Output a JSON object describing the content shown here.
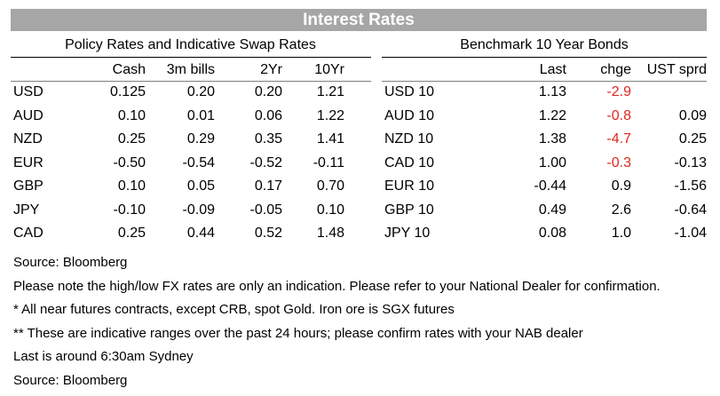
{
  "title": "Interest Rates",
  "policy": {
    "heading": "Policy Rates and Indicative Swap Rates",
    "columns": [
      "Cash",
      "3m bills",
      "2Yr",
      "10Yr"
    ],
    "rows": [
      {
        "label": "USD",
        "values": [
          "0.125",
          "0.20",
          "0.20",
          "1.21"
        ]
      },
      {
        "label": "AUD",
        "values": [
          "0.10",
          "0.01",
          "0.06",
          "1.22"
        ]
      },
      {
        "label": "NZD",
        "values": [
          "0.25",
          "0.29",
          "0.35",
          "1.41"
        ]
      },
      {
        "label": "EUR",
        "values": [
          "-0.50",
          "-0.54",
          "-0.52",
          "-0.11"
        ]
      },
      {
        "label": "GBP",
        "values": [
          "0.10",
          "0.05",
          "0.17",
          "0.70"
        ]
      },
      {
        "label": "JPY",
        "values": [
          "-0.10",
          "-0.09",
          "-0.05",
          "0.10"
        ]
      },
      {
        "label": "CAD",
        "values": [
          "0.25",
          "0.44",
          "0.52",
          "1.48"
        ]
      }
    ]
  },
  "bonds": {
    "heading": "Benchmark 10 Year Bonds",
    "columns": [
      "Last",
      "chge",
      "UST sprd"
    ],
    "rows": [
      {
        "label": "USD 10",
        "last": "1.13",
        "chge": "-2.9",
        "sprd": "",
        "negative_change": true
      },
      {
        "label": "AUD 10",
        "last": "1.22",
        "chge": "-0.8",
        "sprd": "0.09",
        "negative_change": true
      },
      {
        "label": "NZD 10",
        "last": "1.38",
        "chge": "-4.7",
        "sprd": "0.25",
        "negative_change": true
      },
      {
        "label": "CAD 10",
        "last": "1.00",
        "chge": "-0.3",
        "sprd": "-0.13",
        "negative_change": true
      },
      {
        "label": "EUR 10",
        "last": "-0.44",
        "chge": "0.9",
        "sprd": "-1.56",
        "negative_change": false
      },
      {
        "label": "GBP 10",
        "last": "0.49",
        "chge": "2.6",
        "sprd": "-0.64",
        "negative_change": false
      },
      {
        "label": "JPY 10",
        "last": "0.08",
        "chge": "1.0",
        "sprd": "-1.04",
        "negative_change": false
      }
    ]
  },
  "notes": [
    "Source: Bloomberg",
    "Please note the high/low FX rates are only an indication. Please refer to your National Dealer for confirmation.",
    "* All near futures contracts, except CRB, spot Gold.  Iron ore is SGX futures",
    "** These are indicative ranges over the past 24 hours; please confirm rates with your NAB dealer",
    "Last is around 6:30am Sydney",
    "Source: Bloomberg"
  ],
  "colors": {
    "header_bg": "#a6a6a6",
    "negative": "#e0261f"
  }
}
